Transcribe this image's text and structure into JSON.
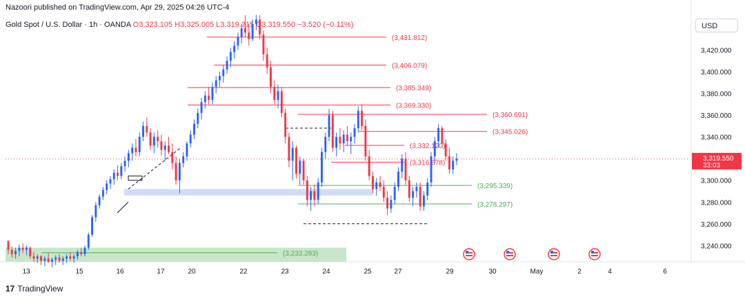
{
  "publisher": "Nazoori published on TradingView.com, Apr 29, 2025 04:26 UTC-4",
  "legend": {
    "symbol": "Gold Spot / U.S. Dollar · 1h · OANDA",
    "open": "O3,323.105",
    "high": "H3,325.005",
    "low": "L3,319.315",
    "close": "C3,319.550",
    "change": "−3.520 (−0.11%)"
  },
  "currency_button": "USD",
  "brand": "TradingView",
  "colors": {
    "up": "#2962ff",
    "down": "#f23645",
    "resistance": "#f23645",
    "support": "#4caf50",
    "zone_blue": "#d1dcf7",
    "zone_green": "#c8e6c9"
  },
  "chart_data": {
    "type": "candlestick",
    "y_axis": {
      "ylim": [
        3225,
        3452
      ],
      "ticks": [
        3240,
        3260,
        3280,
        3300,
        3320,
        3340,
        3360,
        3380,
        3400,
        3420
      ],
      "tick_labels": [
        "3,240.000",
        "3,260.000",
        "3,280.000",
        "3,300.000",
        "3,320.000",
        "3,340.000",
        "3,360.000",
        "3,380.000",
        "3,400.000",
        "3,420.000"
      ]
    },
    "x_axis": {
      "labels": [
        "13",
        "15",
        "16",
        "17",
        "20",
        "22",
        "23",
        "24",
        "25",
        "27",
        "29",
        "30",
        "May",
        "2",
        "4",
        "6"
      ]
    },
    "current_price": {
      "value": 3319.55,
      "label": "3,319.550",
      "countdown": "33:03"
    },
    "levels": [
      {
        "value": 3431.812,
        "label": "(3,431.812)",
        "kind": "resistance"
      },
      {
        "value": 3406.079,
        "label": "(3,406.079)",
        "kind": "resistance"
      },
      {
        "value": 3385.349,
        "label": "(3,385.349)",
        "kind": "resistance"
      },
      {
        "value": 3369.33,
        "label": "(3,369.330)",
        "kind": "resistance"
      },
      {
        "value": 3360.691,
        "label": "(3,360.691)",
        "kind": "resistance"
      },
      {
        "value": 3345.026,
        "label": "(3,345.026)",
        "kind": "resistance"
      },
      {
        "value": 3332.12,
        "label": "(3,332.120)",
        "kind": "resistance"
      },
      {
        "value": 3316.678,
        "label": "(3,316.678)",
        "kind": "resistance"
      },
      {
        "value": 3295.339,
        "label": "(3,295.339)",
        "kind": "support"
      },
      {
        "value": 3278.297,
        "label": "(3,278.297)",
        "kind": "support"
      },
      {
        "value": 3233.283,
        "label": "(3,233.283)",
        "kind": "support"
      }
    ],
    "zones": [
      {
        "from": 3286,
        "to": 3292,
        "color": "zone_blue"
      },
      {
        "from": 3225,
        "to": 3238,
        "color": "zone_green"
      }
    ],
    "event_icons": 4,
    "ohlc": [
      [
        3244,
        3245,
        3232,
        3236
      ],
      [
        3236,
        3239,
        3229,
        3232
      ],
      [
        3232,
        3238,
        3228,
        3235
      ],
      [
        3235,
        3241,
        3230,
        3238
      ],
      [
        3238,
        3242,
        3233,
        3236
      ],
      [
        3236,
        3240,
        3231,
        3238
      ],
      [
        3238,
        3239,
        3228,
        3230
      ],
      [
        3230,
        3234,
        3225,
        3228
      ],
      [
        3228,
        3232,
        3224,
        3230
      ],
      [
        3230,
        3231,
        3222,
        3226
      ],
      [
        3226,
        3230,
        3221,
        3228
      ],
      [
        3228,
        3233,
        3224,
        3225
      ],
      [
        3225,
        3229,
        3220,
        3227
      ],
      [
        3227,
        3231,
        3222,
        3229
      ],
      [
        3229,
        3232,
        3224,
        3226
      ],
      [
        3226,
        3230,
        3222,
        3228
      ],
      [
        3228,
        3232,
        3224,
        3230
      ],
      [
        3230,
        3234,
        3226,
        3228
      ],
      [
        3228,
        3232,
        3224,
        3230
      ],
      [
        3230,
        3236,
        3227,
        3234
      ],
      [
        3234,
        3238,
        3230,
        3232
      ],
      [
        3232,
        3240,
        3230,
        3238
      ],
      [
        3238,
        3252,
        3236,
        3250
      ],
      [
        3250,
        3268,
        3248,
        3266
      ],
      [
        3266,
        3280,
        3262,
        3277
      ],
      [
        3277,
        3287,
        3274,
        3285
      ],
      [
        3285,
        3294,
        3282,
        3291
      ],
      [
        3291,
        3300,
        3287,
        3297
      ],
      [
        3297,
        3304,
        3292,
        3301
      ],
      [
        3301,
        3310,
        3296,
        3307
      ],
      [
        3307,
        3314,
        3300,
        3304
      ],
      [
        3304,
        3316,
        3301,
        3313
      ],
      [
        3313,
        3322,
        3308,
        3318
      ],
      [
        3318,
        3328,
        3312,
        3325
      ],
      [
        3325,
        3334,
        3318,
        3330
      ],
      [
        3330,
        3338,
        3322,
        3326
      ],
      [
        3326,
        3344,
        3322,
        3340
      ],
      [
        3340,
        3354,
        3336,
        3350
      ],
      [
        3350,
        3358,
        3340,
        3344
      ],
      [
        3344,
        3348,
        3328,
        3332
      ],
      [
        3332,
        3344,
        3325,
        3340
      ],
      [
        3340,
        3346,
        3330,
        3336
      ],
      [
        3336,
        3342,
        3323,
        3328
      ],
      [
        3328,
        3336,
        3318,
        3332
      ],
      [
        3332,
        3340,
        3324,
        3326
      ],
      [
        3326,
        3334,
        3310,
        3316
      ],
      [
        3316,
        3322,
        3296,
        3300
      ],
      [
        3300,
        3320,
        3288,
        3316
      ],
      [
        3316,
        3326,
        3312,
        3322
      ],
      [
        3322,
        3336,
        3318,
        3334
      ],
      [
        3334,
        3346,
        3330,
        3342
      ],
      [
        3342,
        3356,
        3338,
        3352
      ],
      [
        3352,
        3366,
        3348,
        3362
      ],
      [
        3362,
        3376,
        3356,
        3372
      ],
      [
        3372,
        3382,
        3366,
        3378
      ],
      [
        3378,
        3386,
        3370,
        3374
      ],
      [
        3374,
        3390,
        3370,
        3386
      ],
      [
        3386,
        3396,
        3380,
        3392
      ],
      [
        3392,
        3400,
        3386,
        3396
      ],
      [
        3396,
        3406,
        3390,
        3402
      ],
      [
        3402,
        3414,
        3398,
        3410
      ],
      [
        3410,
        3422,
        3404,
        3418
      ],
      [
        3418,
        3428,
        3412,
        3424
      ],
      [
        3424,
        3436,
        3420,
        3432
      ],
      [
        3432,
        3444,
        3426,
        3440
      ],
      [
        3440,
        3452,
        3432,
        3436
      ],
      [
        3436,
        3444,
        3424,
        3430
      ],
      [
        3430,
        3448,
        3428,
        3444
      ],
      [
        3444,
        3452,
        3438,
        3448
      ],
      [
        3448,
        3452,
        3430,
        3434
      ],
      [
        3434,
        3438,
        3410,
        3416
      ],
      [
        3416,
        3422,
        3398,
        3404
      ],
      [
        3404,
        3410,
        3380,
        3386
      ],
      [
        3386,
        3392,
        3370,
        3374
      ],
      [
        3374,
        3388,
        3366,
        3382
      ],
      [
        3382,
        3386,
        3358,
        3362
      ],
      [
        3362,
        3366,
        3334,
        3340
      ],
      [
        3340,
        3344,
        3312,
        3318
      ],
      [
        3318,
        3336,
        3300,
        3330
      ],
      [
        3330,
        3332,
        3302,
        3306
      ],
      [
        3306,
        3322,
        3296,
        3318
      ],
      [
        3318,
        3320,
        3296,
        3300
      ],
      [
        3300,
        3304,
        3276,
        3282
      ],
      [
        3282,
        3294,
        3272,
        3290
      ],
      [
        3290,
        3296,
        3276,
        3282
      ],
      [
        3282,
        3302,
        3278,
        3298
      ],
      [
        3298,
        3330,
        3294,
        3326
      ],
      [
        3326,
        3344,
        3320,
        3340
      ],
      [
        3340,
        3366,
        3336,
        3360
      ],
      [
        3360,
        3364,
        3326,
        3330
      ],
      [
        3330,
        3344,
        3322,
        3340
      ],
      [
        3340,
        3348,
        3328,
        3334
      ],
      [
        3334,
        3346,
        3326,
        3342
      ],
      [
        3342,
        3350,
        3332,
        3336
      ],
      [
        3336,
        3344,
        3324,
        3340
      ],
      [
        3340,
        3352,
        3334,
        3348
      ],
      [
        3348,
        3368,
        3344,
        3364
      ],
      [
        3364,
        3370,
        3346,
        3350
      ],
      [
        3350,
        3356,
        3318,
        3322
      ],
      [
        3322,
        3328,
        3300,
        3304
      ],
      [
        3304,
        3308,
        3288,
        3292
      ],
      [
        3292,
        3302,
        3286,
        3298
      ],
      [
        3298,
        3304,
        3290,
        3294
      ],
      [
        3294,
        3300,
        3280,
        3284
      ],
      [
        3284,
        3290,
        3268,
        3274
      ],
      [
        3274,
        3286,
        3270,
        3282
      ],
      [
        3282,
        3298,
        3278,
        3294
      ],
      [
        3294,
        3312,
        3290,
        3308
      ],
      [
        3308,
        3324,
        3302,
        3320
      ],
      [
        3320,
        3326,
        3296,
        3300
      ],
      [
        3300,
        3304,
        3280,
        3284
      ],
      [
        3284,
        3294,
        3276,
        3290
      ],
      [
        3290,
        3298,
        3284,
        3294
      ],
      [
        3294,
        3298,
        3272,
        3276
      ],
      [
        3276,
        3290,
        3272,
        3286
      ],
      [
        3286,
        3302,
        3282,
        3298
      ],
      [
        3298,
        3326,
        3294,
        3322
      ],
      [
        3322,
        3340,
        3316,
        3336
      ],
      [
        3336,
        3352,
        3330,
        3348
      ],
      [
        3348,
        3350,
        3330,
        3334
      ],
      [
        3334,
        3338,
        3318,
        3322
      ],
      [
        3322,
        3330,
        3306,
        3310
      ],
      [
        3310,
        3322,
        3306,
        3318
      ],
      [
        3318,
        3325,
        3314,
        3320
      ]
    ]
  }
}
